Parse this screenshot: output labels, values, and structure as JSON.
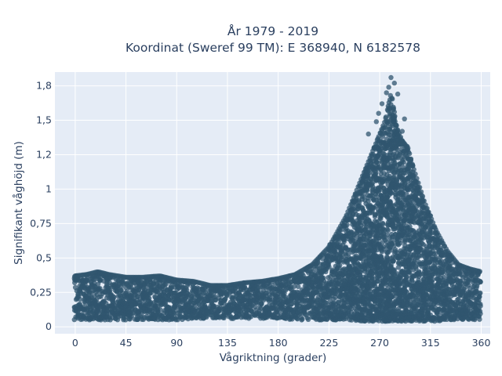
{
  "chart_data": {
    "type": "scatter",
    "title": "År 1979 - 2019",
    "subtitle": "Koordinat (Sweref 99 TM): E 368940, N 6182578",
    "xlabel": "Vågriktning (grader)",
    "ylabel": "Signifikant våghöjd (m)",
    "xlim": [
      -18,
      368
    ],
    "ylim": [
      -0.05,
      1.85
    ],
    "x_ticks": [
      0,
      45,
      90,
      135,
      180,
      225,
      270,
      315,
      360
    ],
    "x_tick_labels": [
      "0",
      "45",
      "90",
      "135",
      "180",
      "225",
      "270",
      "315",
      "360"
    ],
    "y_ticks": [
      0,
      0.25,
      0.5,
      0.75,
      1,
      1.25,
      1.5,
      1.75
    ],
    "y_tick_labels": [
      "0",
      "0,25",
      "0,5",
      "0,75",
      "1",
      "1,2",
      "1,5",
      "1,8"
    ],
    "grid": true,
    "point_color": "#30566f",
    "plot_background": "#e5ecf6",
    "envelope": {
      "x": [
        0,
        10,
        20,
        30,
        45,
        60,
        75,
        90,
        105,
        120,
        135,
        150,
        165,
        180,
        195,
        210,
        225,
        240,
        250,
        260,
        265,
        270,
        275,
        280,
        285,
        290,
        295,
        300,
        310,
        320,
        330,
        340,
        350,
        360
      ],
      "y_min": [
        0.05,
        0.05,
        0.05,
        0.05,
        0.05,
        0.05,
        0.05,
        0.05,
        0.06,
        0.06,
        0.06,
        0.06,
        0.06,
        0.06,
        0.05,
        0.05,
        0.05,
        0.05,
        0.04,
        0.04,
        0.04,
        0.04,
        0.04,
        0.04,
        0.04,
        0.04,
        0.04,
        0.04,
        0.04,
        0.04,
        0.05,
        0.05,
        0.05,
        0.05
      ],
      "y_max": [
        0.37,
        0.38,
        0.4,
        0.38,
        0.36,
        0.36,
        0.37,
        0.34,
        0.33,
        0.3,
        0.3,
        0.32,
        0.33,
        0.35,
        0.38,
        0.45,
        0.58,
        0.8,
        1.0,
        1.2,
        1.3,
        1.4,
        1.5,
        1.7,
        1.45,
        1.35,
        1.3,
        1.15,
        0.9,
        0.7,
        0.55,
        0.45,
        0.42,
        0.4
      ]
    },
    "notable_points": [
      {
        "x": 280,
        "y": 1.81
      },
      {
        "x": 283,
        "y": 1.77
      },
      {
        "x": 278,
        "y": 1.74
      },
      {
        "x": 276,
        "y": 1.7
      },
      {
        "x": 286,
        "y": 1.69
      },
      {
        "x": 269,
        "y": 1.55
      },
      {
        "x": 283,
        "y": 1.56
      },
      {
        "x": 267,
        "y": 1.49
      },
      {
        "x": 292,
        "y": 1.51
      },
      {
        "x": 260,
        "y": 1.4
      },
      {
        "x": 272,
        "y": 1.62
      },
      {
        "x": 290,
        "y": 1.42
      }
    ]
  }
}
